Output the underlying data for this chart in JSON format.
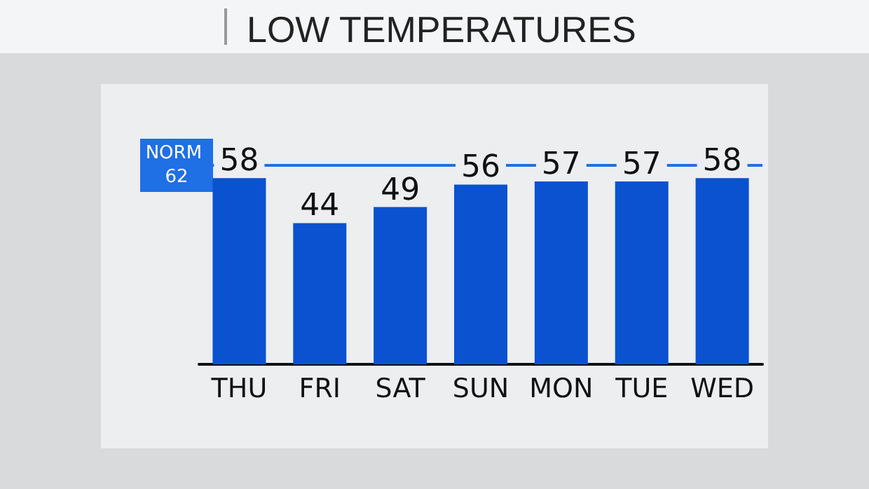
{
  "chart_data": {
    "type": "bar",
    "title": "LOW TEMPERATURES",
    "categories": [
      "THU",
      "FRI",
      "SAT",
      "SUN",
      "MON",
      "TUE",
      "WED"
    ],
    "values": [
      58,
      44,
      49,
      56,
      57,
      57,
      58
    ],
    "color": "#0a52cf",
    "data_labels": true,
    "grid": false,
    "ref_lines": [
      {
        "axis": "y",
        "value": 62,
        "label": "NORM 62",
        "color": "#1f6fe5"
      }
    ]
  }
}
